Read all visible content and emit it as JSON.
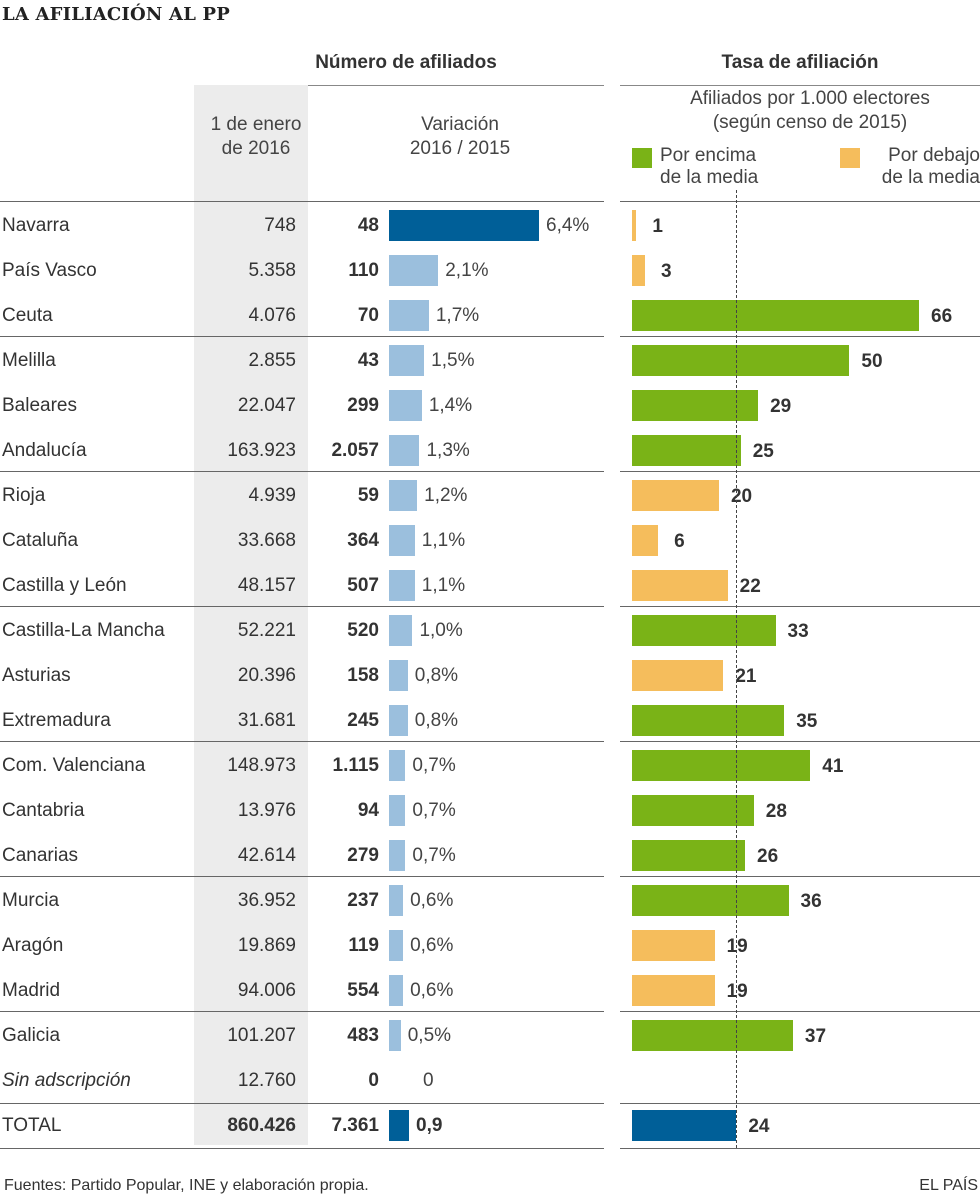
{
  "title": "LA AFILIACIÓN AL PP",
  "headers": {
    "left_group": "Número de afiliados",
    "right_group": "Tasa de afiliación",
    "col_date": [
      "1 de enero",
      "de 2016"
    ],
    "col_var": [
      "Variación",
      "2016 / 2015"
    ],
    "rate_sub": [
      "Afiliados por 1.000 electores",
      "(según censo de 2015)"
    ],
    "legend_above": [
      "Por encima",
      "de la media"
    ],
    "legend_below": [
      "Por debajo",
      "de la media"
    ]
  },
  "colors": {
    "above": "#7ab317",
    "below": "#f5bd5c",
    "var_bar": "#9bbfdd",
    "highlight": "#005f98"
  },
  "chart_data": {
    "type": "table",
    "rows": [
      {
        "region": "Navarra",
        "members": "748",
        "variation": "48",
        "pct": "6,4%",
        "pct_value": 6.4,
        "rate": 1,
        "category": "below"
      },
      {
        "region": "País Vasco",
        "members": "5.358",
        "variation": "110",
        "pct": "2,1%",
        "pct_value": 2.1,
        "rate": 3,
        "category": "below"
      },
      {
        "region": "Ceuta",
        "members": "4.076",
        "variation": "70",
        "pct": "1,7%",
        "pct_value": 1.7,
        "rate": 66,
        "category": "above"
      },
      {
        "region": "Melilla",
        "members": "2.855",
        "variation": "43",
        "pct": "1,5%",
        "pct_value": 1.5,
        "rate": 50,
        "category": "above"
      },
      {
        "region": "Baleares",
        "members": "22.047",
        "variation": "299",
        "pct": "1,4%",
        "pct_value": 1.4,
        "rate": 29,
        "category": "above"
      },
      {
        "region": "Andalucía",
        "members": "163.923",
        "variation": "2.057",
        "pct": "1,3%",
        "pct_value": 1.3,
        "rate": 25,
        "category": "above"
      },
      {
        "region": "Rioja",
        "members": "4.939",
        "variation": "59",
        "pct": "1,2%",
        "pct_value": 1.2,
        "rate": 20,
        "category": "below"
      },
      {
        "region": "Cataluña",
        "members": "33.668",
        "variation": "364",
        "pct": "1,1%",
        "pct_value": 1.1,
        "rate": 6,
        "category": "below"
      },
      {
        "region": "Castilla y León",
        "members": "48.157",
        "variation": "507",
        "pct": "1,1%",
        "pct_value": 1.1,
        "rate": 22,
        "category": "below"
      },
      {
        "region": "Castilla-La Mancha",
        "members": "52.221",
        "variation": "520",
        "pct": "1,0%",
        "pct_value": 1.0,
        "rate": 33,
        "category": "above"
      },
      {
        "region": "Asturias",
        "members": "20.396",
        "variation": "158",
        "pct": "0,8%",
        "pct_value": 0.8,
        "rate": 21,
        "category": "below"
      },
      {
        "region": "Extremadura",
        "members": "31.681",
        "variation": "245",
        "pct": "0,8%",
        "pct_value": 0.8,
        "rate": 35,
        "category": "above"
      },
      {
        "region": "Com. Valenciana",
        "members": "148.973",
        "variation": "1.115",
        "pct": "0,7%",
        "pct_value": 0.7,
        "rate": 41,
        "category": "above"
      },
      {
        "region": "Cantabria",
        "members": "13.976",
        "variation": "94",
        "pct": "0,7%",
        "pct_value": 0.7,
        "rate": 28,
        "category": "above"
      },
      {
        "region": "Canarias",
        "members": "42.614",
        "variation": "279",
        "pct": "0,7%",
        "pct_value": 0.7,
        "rate": 26,
        "category": "above"
      },
      {
        "region": "Murcia",
        "members": "36.952",
        "variation": "237",
        "pct": "0,6%",
        "pct_value": 0.6,
        "rate": 36,
        "category": "above"
      },
      {
        "region": "Aragón",
        "members": "19.869",
        "variation": "119",
        "pct": "0,6%",
        "pct_value": 0.6,
        "rate": 19,
        "category": "below"
      },
      {
        "region": "Madrid",
        "members": "94.006",
        "variation": "554",
        "pct": "0,6%",
        "pct_value": 0.6,
        "rate": 19,
        "category": "below"
      },
      {
        "region": "Galicia",
        "members": "101.207",
        "variation": "483",
        "pct": "0,5%",
        "pct_value": 0.5,
        "rate": 37,
        "category": "above"
      },
      {
        "region": "Sin adscripción",
        "members": "12.760",
        "variation": "0",
        "pct": "0",
        "pct_value": 0,
        "rate": null,
        "category": "none",
        "italic": true
      }
    ],
    "total": {
      "region": "TOTAL",
      "members": "860.426",
      "variation": "7.361",
      "pct": "0,9",
      "pct_value": 0.9,
      "rate": 24
    },
    "mean_rate": 24
  },
  "footer": {
    "source": "Fuentes: Partido Popular, INE y elaboración propia.",
    "brand": "EL PAÍS"
  }
}
